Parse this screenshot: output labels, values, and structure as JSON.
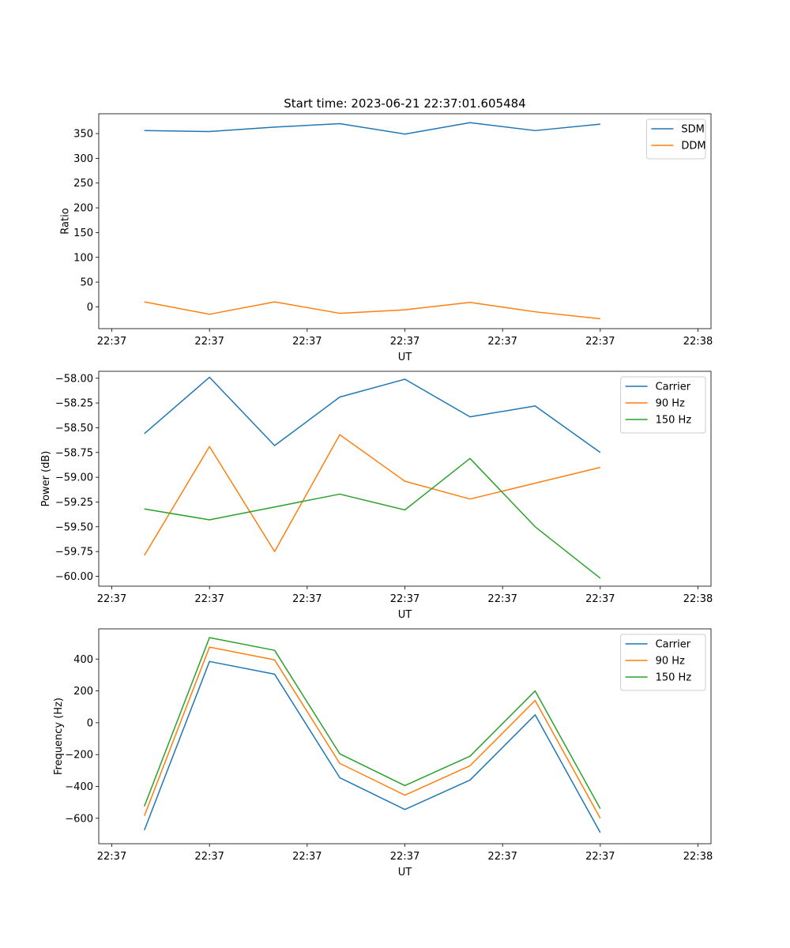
{
  "chart_data": [
    {
      "type": "line",
      "title": "Start time: 2023-06-21 22:37:01.605484",
      "xlabel": "UT",
      "ylabel": "Ratio",
      "x": [
        0,
        1,
        2,
        3,
        4,
        5,
        6,
        7
      ],
      "xlim": [
        -0.7,
        8.7
      ],
      "ylim": [
        -44,
        390
      ],
      "x_ticks": [
        -0.5,
        1.0,
        2.5,
        4.0,
        5.5,
        7.0,
        8.5
      ],
      "x_tick_labels": [
        "22:37",
        "22:37",
        "22:37",
        "22:37",
        "22:37",
        "22:37",
        "22:38"
      ],
      "y_ticks": [
        0,
        50,
        100,
        150,
        200,
        250,
        300,
        350
      ],
      "y_tick_labels": [
        "0",
        "50",
        "100",
        "150",
        "200",
        "250",
        "300",
        "350"
      ],
      "legend_position": "top-right",
      "series": [
        {
          "name": "SDM",
          "color": "#1f77b4",
          "values": [
            356,
            354,
            363,
            370,
            349,
            372,
            356,
            369
          ]
        },
        {
          "name": "DDM",
          "color": "#ff7f0e",
          "values": [
            10,
            -15,
            10,
            -13,
            -6,
            9,
            -10,
            -24
          ]
        }
      ]
    },
    {
      "type": "line",
      "title": "",
      "xlabel": "UT",
      "ylabel": "Power (dB)",
      "x": [
        0,
        1,
        2,
        3,
        4,
        5,
        6,
        7
      ],
      "xlim": [
        -0.7,
        8.7
      ],
      "ylim": [
        -60.1,
        -57.93
      ],
      "x_ticks": [
        -0.5,
        1.0,
        2.5,
        4.0,
        5.5,
        7.0,
        8.5
      ],
      "x_tick_labels": [
        "22:37",
        "22:37",
        "22:37",
        "22:37",
        "22:37",
        "22:37",
        "22:38"
      ],
      "y_ticks": [
        -60.0,
        -59.75,
        -59.5,
        -59.25,
        -59.0,
        -58.75,
        -58.5,
        -58.25,
        -58.0
      ],
      "y_tick_labels": [
        "−60.00",
        "−59.75",
        "−59.50",
        "−59.25",
        "−59.00",
        "−58.75",
        "−58.50",
        "−58.25",
        "−58.00"
      ],
      "legend_position": "top-right",
      "series": [
        {
          "name": "Carrier",
          "color": "#1f77b4",
          "values": [
            -58.56,
            -57.99,
            -58.68,
            -58.19,
            -58.01,
            -58.39,
            -58.28,
            -58.75
          ]
        },
        {
          "name": "90 Hz",
          "color": "#ff7f0e",
          "values": [
            -59.79,
            -58.69,
            -59.75,
            -58.57,
            -59.04,
            -59.22,
            -59.06,
            -58.9
          ]
        },
        {
          "name": "150 Hz",
          "color": "#2ca02c",
          "values": [
            -59.32,
            -59.43,
            -59.3,
            -59.17,
            -59.33,
            -58.81,
            -59.5,
            -60.02
          ]
        }
      ]
    },
    {
      "type": "line",
      "title": "",
      "xlabel": "UT",
      "ylabel": "Frequency (Hz)",
      "x": [
        0,
        1,
        2,
        3,
        4,
        5,
        6,
        7
      ],
      "xlim": [
        -0.7,
        8.7
      ],
      "ylim": [
        -760,
        590
      ],
      "x_ticks": [
        -0.5,
        1.0,
        2.5,
        4.0,
        5.5,
        7.0,
        8.5
      ],
      "x_tick_labels": [
        "22:37",
        "22:37",
        "22:37",
        "22:37",
        "22:37",
        "22:37",
        "22:38"
      ],
      "y_ticks": [
        -600,
        -400,
        -200,
        0,
        200,
        400
      ],
      "y_tick_labels": [
        "−600",
        "−400",
        "−200",
        "0",
        "200",
        "400"
      ],
      "legend_position": "top-right",
      "series": [
        {
          "name": "Carrier",
          "color": "#1f77b4",
          "values": [
            -675,
            385,
            305,
            -345,
            -545,
            -360,
            50,
            -690
          ]
        },
        {
          "name": "90 Hz",
          "color": "#ff7f0e",
          "values": [
            -585,
            475,
            395,
            -255,
            -455,
            -270,
            140,
            -600
          ]
        },
        {
          "name": "150 Hz",
          "color": "#2ca02c",
          "values": [
            -525,
            535,
            455,
            -195,
            -395,
            -210,
            200,
            -540
          ]
        }
      ]
    }
  ]
}
